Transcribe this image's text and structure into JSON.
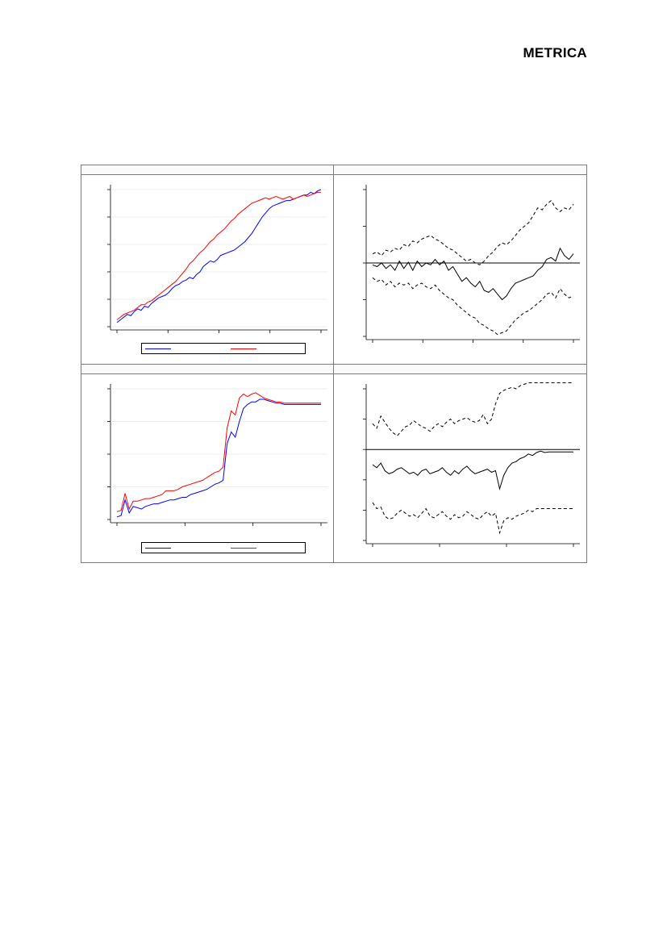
{
  "header": {
    "brand": "METRICA"
  },
  "colors": {
    "series_blue": "#0000ff",
    "series_red": "#ff0000",
    "band_black": "#000000",
    "grid": "#dcdcdc"
  },
  "chart_data": [
    {
      "type": "line",
      "title": "",
      "xlabel": "",
      "ylabel": "",
      "xlim": [
        0,
        100
      ],
      "ylim": [
        0,
        100
      ],
      "grid": true,
      "legend": "bottom",
      "series": [
        {
          "values": [
            3,
            5,
            7,
            9,
            8,
            11,
            13,
            12,
            15,
            14,
            17,
            19,
            21,
            22,
            23,
            25,
            28,
            30,
            31,
            33,
            34,
            36,
            35,
            38,
            40,
            44,
            46,
            48,
            47,
            49,
            52,
            53,
            54,
            55,
            56,
            58,
            60,
            62,
            65,
            68,
            72,
            76,
            80,
            83,
            86,
            88,
            89,
            90,
            91,
            92,
            92,
            93,
            94,
            95,
            96,
            96,
            98,
            97,
            99,
            100
          ]
        },
        {
          "values": [
            5,
            7,
            9,
            10,
            11,
            12,
            14,
            16,
            16,
            18,
            19,
            21,
            23,
            25,
            27,
            29,
            31,
            33,
            36,
            39,
            42,
            46,
            48,
            51,
            54,
            56,
            59,
            62,
            64,
            67,
            69,
            71,
            74,
            77,
            79,
            82,
            84,
            86,
            88,
            90,
            91,
            92,
            93,
            94,
            93,
            94,
            95,
            94,
            93,
            94,
            95,
            93,
            94,
            95,
            96,
            95,
            96,
            97,
            98,
            98
          ]
        }
      ]
    },
    {
      "type": "line",
      "title": "",
      "xlabel": "",
      "ylabel": "",
      "ylim": [
        -2,
        2
      ],
      "legend": "none",
      "series": [
        {
          "values": [
            -0.05,
            -0.1,
            0.0,
            -0.15,
            -0.05,
            -0.2,
            0.05,
            -0.15,
            0.02,
            -0.2,
            0.05,
            -0.1,
            0.0,
            -0.05,
            0.1,
            -0.05,
            0.05,
            -0.2,
            -0.1,
            -0.3,
            -0.5,
            -0.4,
            -0.55,
            -0.65,
            -0.5,
            -0.75,
            -0.8,
            -0.7,
            -0.85,
            -1.0,
            -0.9,
            -0.7,
            -0.55,
            -0.5,
            -0.45,
            -0.4,
            -0.35,
            -0.2,
            -0.1,
            0.1,
            0.15,
            0.05,
            0.4,
            0.2,
            0.1,
            0.25
          ]
        },
        {
          "values": [
            0.25,
            0.3,
            0.2,
            0.35,
            0.3,
            0.4,
            0.35,
            0.5,
            0.45,
            0.6,
            0.55,
            0.65,
            0.7,
            0.75,
            0.65,
            0.6,
            0.5,
            0.4,
            0.35,
            0.25,
            0.15,
            0.05,
            0.1,
            0.0,
            -0.05,
            0.05,
            0.2,
            0.3,
            0.45,
            0.55,
            0.5,
            0.6,
            0.75,
            0.9,
            1.0,
            1.1,
            1.3,
            1.5,
            1.45,
            1.6,
            1.7,
            1.5,
            1.4,
            1.5,
            1.45,
            1.6
          ]
        },
        {
          "values": [
            -0.4,
            -0.5,
            -0.45,
            -0.6,
            -0.5,
            -0.65,
            -0.55,
            -0.6,
            -0.55,
            -0.7,
            -0.6,
            -0.55,
            -0.65,
            -0.7,
            -0.6,
            -0.75,
            -0.85,
            -0.95,
            -1.0,
            -1.15,
            -1.25,
            -1.35,
            -1.45,
            -1.5,
            -1.65,
            -1.7,
            -1.8,
            -1.85,
            -1.95,
            -1.9,
            -1.85,
            -1.7,
            -1.55,
            -1.45,
            -1.35,
            -1.3,
            -1.2,
            -1.1,
            -1.0,
            -0.85,
            -0.8,
            -0.95,
            -0.7,
            -0.85,
            -0.95,
            -0.9
          ]
        }
      ]
    },
    {
      "type": "line",
      "title": "",
      "xlabel": "",
      "ylabel": "",
      "ylim": [
        0,
        100
      ],
      "grid": true,
      "legend": "bottom",
      "series": [
        {
          "values": [
            2,
            3,
            15,
            5,
            10,
            9,
            8,
            10,
            11,
            12,
            12,
            13,
            14,
            15,
            15,
            16,
            17,
            17,
            19,
            20,
            21,
            22,
            23,
            25,
            27,
            28,
            30,
            58,
            67,
            63,
            75,
            85,
            88,
            90,
            90,
            92,
            92,
            91,
            90,
            89,
            89,
            88,
            88,
            88,
            88,
            88,
            88,
            88,
            88,
            88,
            88
          ]
        },
        {
          "values": [
            6,
            7,
            20,
            8,
            14,
            14,
            15,
            16,
            16,
            17,
            18,
            19,
            22,
            22,
            22,
            23,
            25,
            26,
            27,
            28,
            29,
            30,
            32,
            34,
            36,
            37,
            40,
            70,
            83,
            80,
            93,
            96,
            94,
            96,
            97,
            95,
            93,
            92,
            91,
            90,
            90,
            89,
            89,
            89,
            89,
            89,
            89,
            89,
            89,
            89,
            89
          ]
        }
      ]
    },
    {
      "type": "line",
      "title": "",
      "xlabel": "",
      "ylabel": "",
      "ylim": [
        -3,
        2
      ],
      "legend": "none",
      "series": [
        {
          "values": [
            -0.5,
            -0.6,
            -0.45,
            -0.7,
            -0.8,
            -0.75,
            -0.65,
            -0.6,
            -0.7,
            -0.8,
            -0.75,
            -0.85,
            -0.7,
            -0.65,
            -0.8,
            -0.75,
            -0.7,
            -0.6,
            -0.75,
            -0.85,
            -0.7,
            -0.8,
            -0.65,
            -0.55,
            -0.7,
            -0.8,
            -0.75,
            -0.7,
            -0.65,
            -0.75,
            -0.7,
            -1.3,
            -0.85,
            -0.6,
            -0.45,
            -0.4,
            -0.3,
            -0.25,
            -0.15,
            -0.2,
            -0.1,
            -0.05,
            -0.1,
            -0.08,
            -0.08,
            -0.08,
            -0.08,
            -0.08,
            -0.08,
            -0.08
          ]
        },
        {
          "values": [
            0.85,
            0.7,
            1.1,
            0.9,
            0.7,
            0.55,
            0.45,
            0.6,
            0.75,
            0.8,
            0.95,
            0.85,
            0.75,
            0.7,
            0.6,
            0.75,
            0.85,
            0.75,
            0.9,
            1.0,
            0.85,
            0.95,
            1.0,
            1.05,
            0.95,
            0.9,
            0.95,
            1.15,
            0.85,
            1.0,
            1.5,
            1.85,
            1.95,
            2.0,
            2.05,
            2.0,
            2.1,
            2.15,
            2.2,
            2.2,
            2.2,
            2.2,
            2.2,
            2.2,
            2.2,
            2.2,
            2.2,
            2.2,
            2.2,
            2.2
          ]
        },
        {
          "values": [
            -1.75,
            -1.95,
            -1.9,
            -2.2,
            -2.3,
            -2.25,
            -2.1,
            -2.0,
            -2.1,
            -2.2,
            -2.15,
            -2.25,
            -2.1,
            -1.95,
            -2.2,
            -2.25,
            -2.15,
            -2.05,
            -2.2,
            -2.3,
            -2.15,
            -2.25,
            -2.2,
            -2.05,
            -2.15,
            -2.25,
            -2.3,
            -2.15,
            -2.05,
            -2.2,
            -2.1,
            -2.75,
            -2.35,
            -2.25,
            -2.3,
            -2.2,
            -2.15,
            -2.1,
            -2.0,
            -2.05,
            -1.95,
            -1.95,
            -1.95,
            -1.95,
            -1.95,
            -1.95,
            -1.95,
            -1.95,
            -1.95,
            -1.95
          ]
        }
      ]
    }
  ]
}
